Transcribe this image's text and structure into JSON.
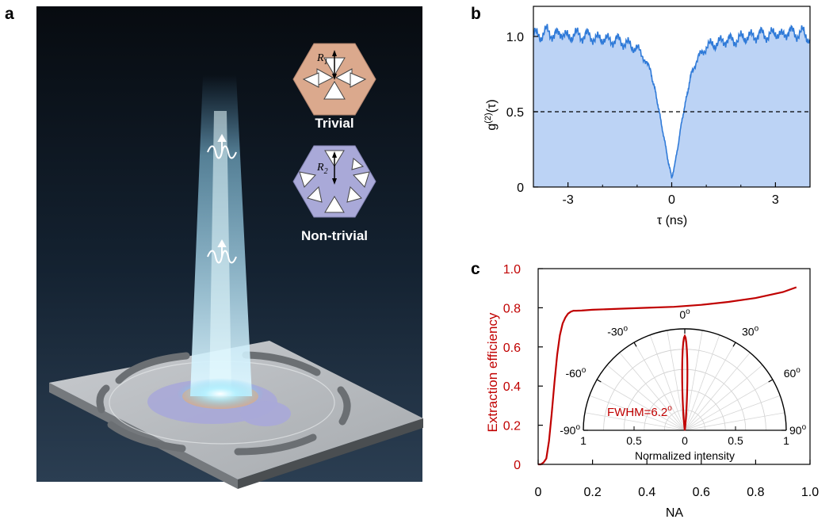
{
  "panels": {
    "a": {
      "label": "a",
      "hex_top_label": "Trivial",
      "hex_top_radius": "R",
      "hex_top_radius_sub": "1",
      "hex_bottom_label": "Non-trivial",
      "hex_bottom_radius": "R",
      "hex_bottom_radius_sub": "2",
      "colors": {
        "trivial_fill": "#dba98d",
        "nontrivial_fill": "#a9a9d8",
        "background_top": "#0b1119",
        "background_bottom": "#233447",
        "beam": "#8fdcf5",
        "chip": "#b9bcc0"
      }
    },
    "b": {
      "label": "b",
      "ylabel_main": "g",
      "ylabel_sup": "(2)",
      "ylabel_tail": "(τ)",
      "xlabel": "τ (ns)",
      "colors": {
        "line": "#2f7ad8",
        "fill": "#bcd3f5",
        "threshold": "#000000"
      }
    },
    "c": {
      "label": "c",
      "xlabel": "NA",
      "ylabel": "Extraction efficiency",
      "colors": {
        "curve": "#c00000",
        "axis_label": "#c00000"
      },
      "inset": {
        "xlabel": "Normalized intensity",
        "annotation": "FWHM=6.2",
        "annotation_sup": "o",
        "radial_ticks": [
          "1",
          "0.5",
          "0",
          "0.5",
          "1"
        ]
      }
    }
  },
  "chart_data": [
    {
      "panel": "b",
      "type": "line",
      "xlim": [
        -4,
        4
      ],
      "ylim": [
        0,
        1.2
      ],
      "xticks": [
        -3,
        0,
        3
      ],
      "xtick_labels": [
        "-3",
        "0",
        "3"
      ],
      "yticks": [
        0,
        0.5,
        1.0
      ],
      "ytick_labels": [
        "0",
        "0.5",
        "1.0"
      ],
      "threshold": 0.5,
      "grid": false,
      "series": [
        {
          "x": [
            -4.0,
            -3.8,
            -3.6,
            -3.4,
            -3.2,
            -3.0,
            -2.8,
            -2.6,
            -2.4,
            -2.2,
            -2.0,
            -1.8,
            -1.6,
            -1.4,
            -1.2,
            -1.0,
            -0.8,
            -0.6,
            -0.5,
            -0.4,
            -0.3,
            -0.2,
            -0.1,
            0.0,
            0.1,
            0.2,
            0.3,
            0.4,
            0.5,
            0.6,
            0.8,
            1.0,
            1.2,
            1.4,
            1.6,
            1.8,
            2.0,
            2.2,
            2.4,
            2.6,
            2.8,
            3.0,
            3.2,
            3.4,
            3.6,
            3.8,
            4.0
          ],
          "y": [
            1.02,
            1.0,
            1.04,
            1.0,
            1.03,
            0.99,
            1.02,
            1.0,
            1.01,
            0.98,
            0.99,
            0.97,
            0.98,
            0.96,
            0.94,
            0.92,
            0.86,
            0.76,
            0.66,
            0.55,
            0.42,
            0.3,
            0.17,
            0.06,
            0.16,
            0.3,
            0.45,
            0.56,
            0.68,
            0.78,
            0.87,
            0.93,
            0.95,
            0.96,
            0.98,
            0.97,
            0.99,
            1.0,
            1.0,
            1.02,
            1.0,
            1.03,
            1.0,
            1.04,
            1.01,
            1.03,
            0.98
          ]
        }
      ]
    },
    {
      "panel": "c",
      "type": "line",
      "xlim": [
        0,
        1.0
      ],
      "ylim": [
        0,
        1.0
      ],
      "xticks": [
        0,
        0.2,
        0.4,
        0.6,
        0.8,
        1.0
      ],
      "xtick_labels": [
        "0",
        "0.2",
        "0.4",
        "0.6",
        "0.8",
        "1.0"
      ],
      "yticks": [
        0,
        0.2,
        0.4,
        0.6,
        0.8,
        1.0
      ],
      "ytick_labels": [
        "0",
        "0.2",
        "0.4",
        "0.6",
        "0.8",
        "1.0"
      ],
      "grid": false,
      "series": [
        {
          "x": [
            0.0,
            0.01,
            0.02,
            0.03,
            0.04,
            0.05,
            0.06,
            0.07,
            0.08,
            0.09,
            0.1,
            0.11,
            0.12,
            0.13,
            0.14,
            0.16,
            0.2,
            0.3,
            0.4,
            0.5,
            0.6,
            0.7,
            0.8,
            0.9,
            0.95
          ],
          "y": [
            0.0,
            0.0,
            0.01,
            0.03,
            0.12,
            0.26,
            0.42,
            0.56,
            0.66,
            0.72,
            0.75,
            0.77,
            0.78,
            0.785,
            0.785,
            0.786,
            0.79,
            0.795,
            0.8,
            0.805,
            0.815,
            0.83,
            0.85,
            0.88,
            0.905
          ]
        }
      ]
    },
    {
      "panel": "c-inset",
      "type": "polar",
      "angle_ticks": [
        -90,
        -60,
        -30,
        0,
        30,
        60,
        90
      ],
      "angle_tick_labels": [
        "-90",
        "-60",
        "-30",
        "0",
        "30",
        "60",
        "90"
      ],
      "angle_unit_symbol": "o",
      "radial_range": [
        0,
        1
      ],
      "fwhm_deg": 6.2,
      "peak_intensity": 0.93
    }
  ]
}
